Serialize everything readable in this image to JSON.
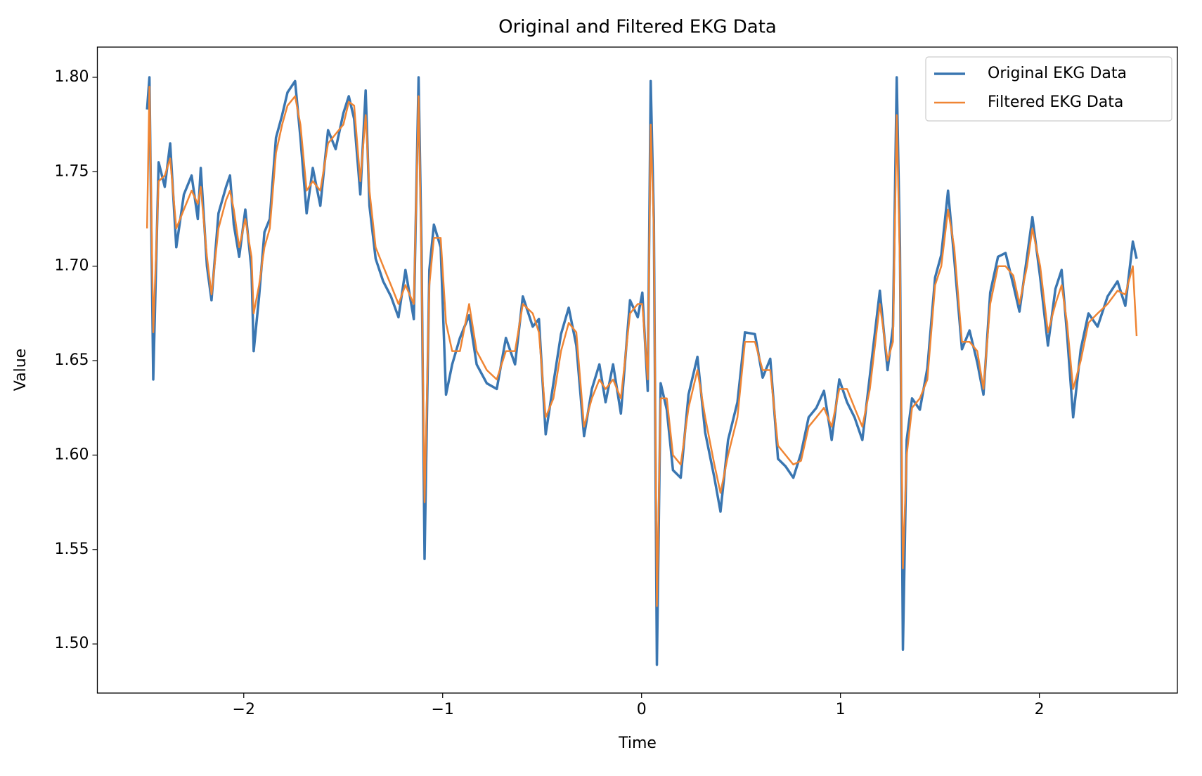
{
  "chart_data": {
    "type": "line",
    "title": "Original and Filtered EKG Data",
    "x_label": "Time",
    "y_label": "Value",
    "x": [
      -2.486,
      -2.474,
      -2.455,
      -2.428,
      -2.397,
      -2.37,
      -2.339,
      -2.301,
      -2.262,
      -2.231,
      -2.216,
      -2.185,
      -2.162,
      -2.127,
      -2.089,
      -2.069,
      -2.05,
      -2.023,
      -1.992,
      -1.961,
      -1.95,
      -1.923,
      -1.896,
      -1.869,
      -1.838,
      -1.807,
      -1.78,
      -1.742,
      -1.715,
      -1.684,
      -1.653,
      -1.615,
      -1.576,
      -1.538,
      -1.499,
      -1.472,
      -1.445,
      -1.414,
      -1.387,
      -1.368,
      -1.337,
      -1.299,
      -1.26,
      -1.222,
      -1.187,
      -1.145,
      -1.121,
      -1.106,
      -1.091,
      -1.067,
      -1.044,
      -1.01,
      -0.983,
      -0.952,
      -0.913,
      -0.867,
      -0.829,
      -0.778,
      -0.728,
      -0.682,
      -0.636,
      -0.597,
      -0.547,
      -0.516,
      -0.482,
      -0.443,
      -0.405,
      -0.366,
      -0.328,
      -0.289,
      -0.25,
      -0.212,
      -0.181,
      -0.143,
      -0.104,
      -0.058,
      -0.019,
      0.004,
      0.031,
      0.046,
      0.062,
      0.077,
      0.096,
      0.127,
      0.158,
      0.197,
      0.236,
      0.281,
      0.32,
      0.366,
      0.397,
      0.435,
      0.482,
      0.52,
      0.57,
      0.609,
      0.647,
      0.686,
      0.724,
      0.763,
      0.802,
      0.84,
      0.879,
      0.917,
      0.956,
      0.994,
      1.033,
      1.071,
      1.11,
      1.148,
      1.198,
      1.237,
      1.264,
      1.283,
      1.299,
      1.314,
      1.333,
      1.36,
      1.399,
      1.437,
      1.476,
      1.507,
      1.541,
      1.572,
      1.611,
      1.649,
      1.688,
      1.719,
      1.753,
      1.792,
      1.83,
      1.869,
      1.9,
      1.938,
      1.965,
      2.004,
      2.043,
      2.081,
      2.112,
      2.139,
      2.17,
      2.208,
      2.247,
      2.293,
      2.343,
      2.393,
      2.432,
      2.47,
      2.489
    ],
    "series": [
      {
        "name": "Original EKG Data",
        "color": "#3a76b1",
        "width": 3.5,
        "values": [
          1.783,
          1.8,
          1.64,
          1.755,
          1.742,
          1.765,
          1.71,
          1.738,
          1.748,
          1.725,
          1.752,
          1.7,
          1.682,
          1.728,
          1.742,
          1.748,
          1.722,
          1.705,
          1.73,
          1.698,
          1.655,
          1.684,
          1.718,
          1.725,
          1.768,
          1.78,
          1.792,
          1.798,
          1.768,
          1.728,
          1.752,
          1.732,
          1.772,
          1.762,
          1.781,
          1.79,
          1.778,
          1.738,
          1.793,
          1.732,
          1.704,
          1.692,
          1.684,
          1.673,
          1.698,
          1.672,
          1.8,
          1.708,
          1.545,
          1.698,
          1.722,
          1.71,
          1.632,
          1.648,
          1.662,
          1.674,
          1.648,
          1.638,
          1.635,
          1.662,
          1.648,
          1.684,
          1.668,
          1.672,
          1.611,
          1.638,
          1.664,
          1.678,
          1.658,
          1.61,
          1.635,
          1.648,
          1.628,
          1.648,
          1.622,
          1.682,
          1.673,
          1.686,
          1.634,
          1.798,
          1.724,
          1.489,
          1.638,
          1.624,
          1.592,
          1.588,
          1.632,
          1.652,
          1.612,
          1.588,
          1.57,
          1.608,
          1.628,
          1.665,
          1.664,
          1.641,
          1.651,
          1.598,
          1.594,
          1.588,
          1.601,
          1.62,
          1.625,
          1.634,
          1.608,
          1.64,
          1.628,
          1.62,
          1.608,
          1.642,
          1.687,
          1.645,
          1.668,
          1.8,
          1.71,
          1.497,
          1.608,
          1.63,
          1.624,
          1.646,
          1.694,
          1.706,
          1.74,
          1.704,
          1.656,
          1.666,
          1.649,
          1.632,
          1.686,
          1.705,
          1.707,
          1.69,
          1.676,
          1.705,
          1.726,
          1.694,
          1.658,
          1.688,
          1.698,
          1.664,
          1.62,
          1.656,
          1.675,
          1.668,
          1.684,
          1.692,
          1.679,
          1.713,
          1.704
        ]
      },
      {
        "name": "Filtered EKG Data",
        "color": "#ef8534",
        "width": 2.5,
        "values": [
          1.72,
          1.795,
          1.665,
          1.745,
          1.748,
          1.757,
          1.72,
          1.73,
          1.74,
          1.733,
          1.742,
          1.705,
          1.685,
          1.72,
          1.735,
          1.74,
          1.73,
          1.71,
          1.725,
          1.705,
          1.675,
          1.69,
          1.71,
          1.72,
          1.76,
          1.775,
          1.785,
          1.79,
          1.775,
          1.74,
          1.745,
          1.74,
          1.765,
          1.77,
          1.775,
          1.787,
          1.785,
          1.745,
          1.78,
          1.74,
          1.71,
          1.7,
          1.69,
          1.68,
          1.69,
          1.68,
          1.79,
          1.7,
          1.575,
          1.69,
          1.715,
          1.715,
          1.67,
          1.655,
          1.655,
          1.68,
          1.655,
          1.645,
          1.64,
          1.655,
          1.655,
          1.68,
          1.675,
          1.665,
          1.62,
          1.63,
          1.655,
          1.67,
          1.665,
          1.615,
          1.63,
          1.64,
          1.635,
          1.64,
          1.63,
          1.675,
          1.68,
          1.68,
          1.64,
          1.775,
          1.72,
          1.52,
          1.63,
          1.63,
          1.6,
          1.595,
          1.625,
          1.645,
          1.62,
          1.595,
          1.58,
          1.6,
          1.62,
          1.66,
          1.66,
          1.645,
          1.645,
          1.605,
          1.6,
          1.595,
          1.597,
          1.615,
          1.62,
          1.625,
          1.615,
          1.635,
          1.635,
          1.625,
          1.615,
          1.635,
          1.68,
          1.65,
          1.66,
          1.78,
          1.7,
          1.54,
          1.6,
          1.625,
          1.63,
          1.64,
          1.69,
          1.7,
          1.73,
          1.71,
          1.66,
          1.66,
          1.655,
          1.635,
          1.68,
          1.7,
          1.7,
          1.695,
          1.68,
          1.7,
          1.72,
          1.7,
          1.665,
          1.68,
          1.69,
          1.67,
          1.635,
          1.65,
          1.67,
          1.675,
          1.68,
          1.687,
          1.685,
          1.7,
          1.663
        ]
      }
    ],
    "xlim": [
      -2.736,
      2.694
    ],
    "ylim": [
      1.474,
      1.816
    ],
    "xticks": [
      {
        "value": -2,
        "label": "−2"
      },
      {
        "value": -1,
        "label": "−1"
      },
      0,
      1,
      2
    ],
    "yticks": [
      {
        "value": 1.5,
        "label": "1.50"
      },
      {
        "value": 1.55,
        "label": "1.55"
      },
      {
        "value": 1.6,
        "label": "1.60"
      },
      {
        "value": 1.65,
        "label": "1.65"
      },
      {
        "value": 1.7,
        "label": "1.70"
      },
      {
        "value": 1.75,
        "label": "1.75"
      },
      {
        "value": 1.8,
        "label": "1.80"
      }
    ],
    "grid": false,
    "legend": "upper right"
  }
}
